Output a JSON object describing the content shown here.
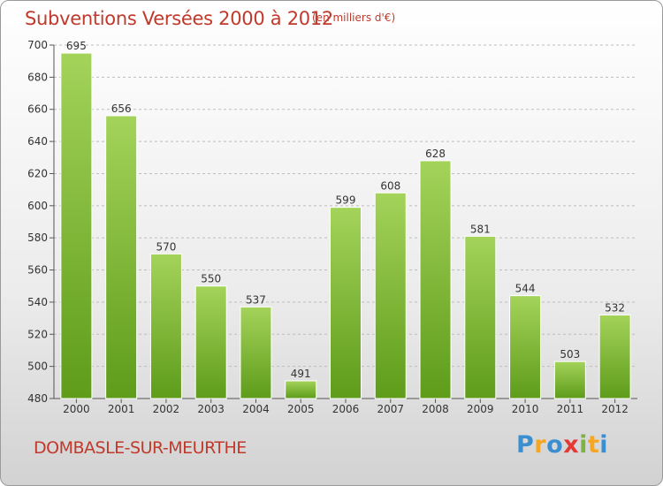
{
  "header": {
    "title": "Subventions Versées 2000 à 2012",
    "subtitle": "(en milliers d'€)"
  },
  "footer": {
    "city": "DOMBASLE-SUR-MEURTHE",
    "logo": [
      "P",
      "r",
      "o",
      "x",
      "i",
      "t",
      "i"
    ],
    "logo_colors": [
      "#3b8fd1",
      "#f5a623",
      "#3b8fd1",
      "#e53935",
      "#7cb342",
      "#f5a623",
      "#3b8fd1"
    ]
  },
  "chart_data": {
    "type": "bar",
    "title": "Subventions Versées 2000 à 2012",
    "subtitle": "(en milliers d'€)",
    "categories": [
      "2000",
      "2001",
      "2002",
      "2003",
      "2004",
      "2005",
      "2006",
      "2007",
      "2008",
      "2009",
      "2010",
      "2011",
      "2012"
    ],
    "values": [
      695,
      656,
      570,
      550,
      537,
      491,
      599,
      608,
      628,
      581,
      544,
      503,
      532
    ],
    "ylim": [
      480,
      700
    ],
    "yticks": [
      480,
      500,
      520,
      540,
      560,
      580,
      600,
      620,
      640,
      660,
      680,
      700
    ],
    "grid": "horizontal dashed",
    "bar_color_top": "#a4d35a",
    "bar_color_bottom": "#5e9c1a"
  }
}
